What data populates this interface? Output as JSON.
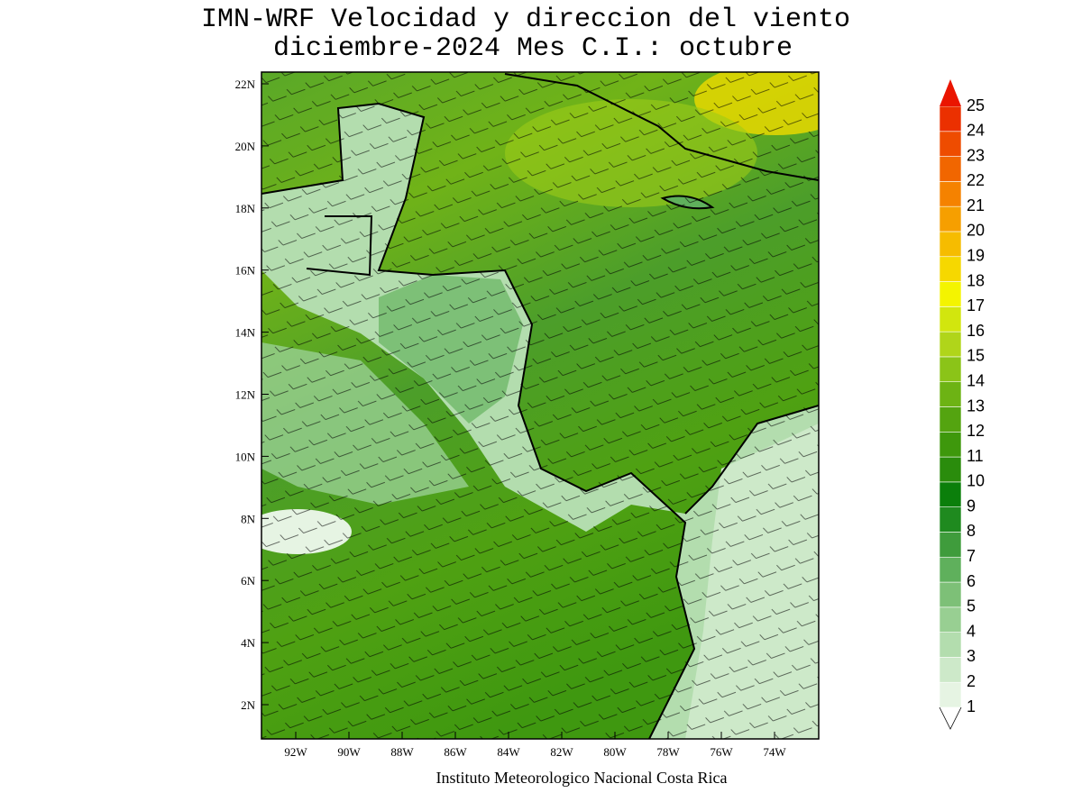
{
  "title": [
    "IMN-WRF Velocidad y direccion del viento",
    "diciembre-2024 Mes C.I.: octubre"
  ],
  "map": {
    "x_labels": [
      "92W",
      "90W",
      "88W",
      "86W",
      "84W",
      "82W",
      "80W",
      "78W",
      "76W",
      "74W"
    ],
    "y_labels": [
      "22N",
      "20N",
      "18N",
      "16N",
      "14N",
      "12N",
      "10N",
      "8N",
      "6N",
      "4N",
      "2N"
    ]
  },
  "colorbar": {
    "levels": [
      1,
      2,
      3,
      4,
      5,
      6,
      7,
      8,
      9,
      10,
      11,
      12,
      13,
      14,
      15,
      16,
      17,
      18,
      19,
      20,
      21,
      22,
      23,
      24,
      25
    ],
    "colors": [
      "#e6f4e3",
      "#cde9c9",
      "#b3ddae",
      "#98cf92",
      "#7dc077",
      "#5fb05c",
      "#3f9c3c",
      "#1f8a1f",
      "#0b7f0b",
      "#2a8c0c",
      "#3e980c",
      "#54a410",
      "#6db314",
      "#8bc418",
      "#b0d51a",
      "#d2e60e",
      "#f4f400",
      "#f6d800",
      "#f6bc00",
      "#f69f00",
      "#f58200",
      "#f16600",
      "#ee4c00",
      "#eb3000",
      "#ea1500"
    ]
  },
  "footer": "Instituto Meteorologico Nacional Costa Rica"
}
